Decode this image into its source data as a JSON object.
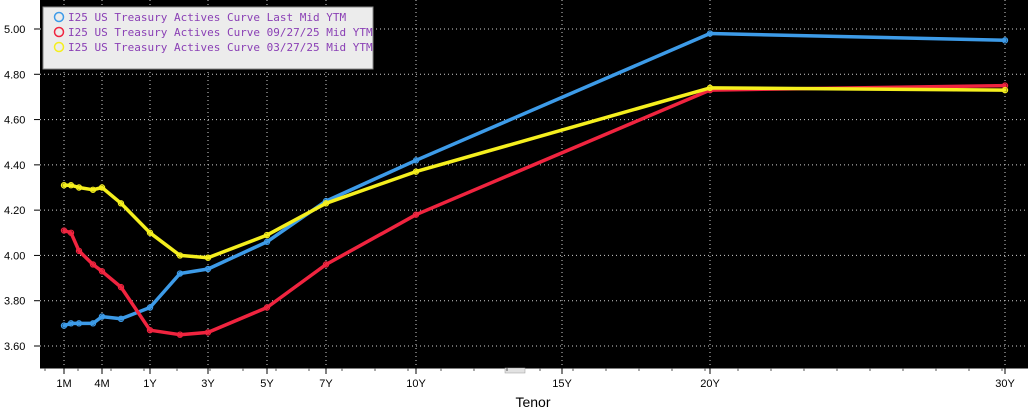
{
  "chart_data": {
    "type": "line",
    "title": "",
    "xlabel": "Tenor",
    "ylabel": "",
    "ylim": [
      3.55,
      5.08
    ],
    "y_ticks": [
      "5.00",
      "4.80",
      "4.60",
      "4.40",
      "4.20",
      "4.00",
      "3.80",
      "3.60"
    ],
    "x_ticks": [
      {
        "label": "1M",
        "t": 0.0833
      },
      {
        "label": "4M",
        "t": 0.3333
      },
      {
        "label": "1Y",
        "t": 1
      },
      {
        "label": "3Y",
        "t": 3
      },
      {
        "label": "5Y",
        "t": 5
      },
      {
        "label": "7Y",
        "t": 7
      },
      {
        "label": "10Y",
        "t": 10
      },
      {
        "label": "15Y",
        "t": 15
      },
      {
        "label": "20Y",
        "t": 20
      },
      {
        "label": "30Y",
        "t": 30
      }
    ],
    "grid": true,
    "legend_position": "top-left",
    "series": [
      {
        "name": "I25 US Treasury Actives Curve Last Mid YTM",
        "color": "#3d9be8",
        "points": [
          [
            0.0833,
            3.69
          ],
          [
            0.1667,
            3.7
          ],
          [
            0.25,
            3.7
          ],
          [
            0.5,
            3.7
          ],
          [
            0.6667,
            3.73
          ],
          [
            1,
            3.72
          ],
          [
            2,
            3.77
          ],
          [
            3,
            3.92
          ],
          [
            3,
            3.94
          ],
          [
            5,
            4.06
          ],
          [
            7,
            4.24
          ],
          [
            10,
            4.42
          ],
          [
            20,
            4.98
          ],
          [
            30,
            4.95
          ]
        ]
      },
      {
        "name": "I25 US Treasury Actives Curve 09/27/25 Mid YTM",
        "color": "#f0243f",
        "points": [
          [
            0.0833,
            4.11
          ],
          [
            0.1667,
            4.1
          ],
          [
            0.25,
            4.02
          ],
          [
            0.5,
            3.96
          ],
          [
            0.6667,
            3.93
          ],
          [
            1,
            3.86
          ],
          [
            2,
            3.67
          ],
          [
            3,
            3.65
          ],
          [
            3,
            3.66
          ],
          [
            5,
            3.77
          ],
          [
            7,
            3.96
          ],
          [
            10,
            4.18
          ],
          [
            20,
            4.73
          ],
          [
            30,
            4.75
          ]
        ]
      },
      {
        "name": "I25 US Treasury Actives Curve 03/27/25 Mid YTM",
        "color": "#f5ef1e",
        "points": [
          [
            0.0833,
            4.31
          ],
          [
            0.1667,
            4.31
          ],
          [
            0.25,
            4.3
          ],
          [
            0.5,
            4.29
          ],
          [
            0.6667,
            4.3
          ],
          [
            1,
            4.23
          ],
          [
            2,
            4.1
          ],
          [
            3,
            4.0
          ],
          [
            3,
            3.99
          ],
          [
            5,
            4.09
          ],
          [
            7,
            4.23
          ],
          [
            10,
            4.37
          ],
          [
            20,
            4.74
          ],
          [
            30,
            4.73
          ]
        ]
      }
    ]
  }
}
